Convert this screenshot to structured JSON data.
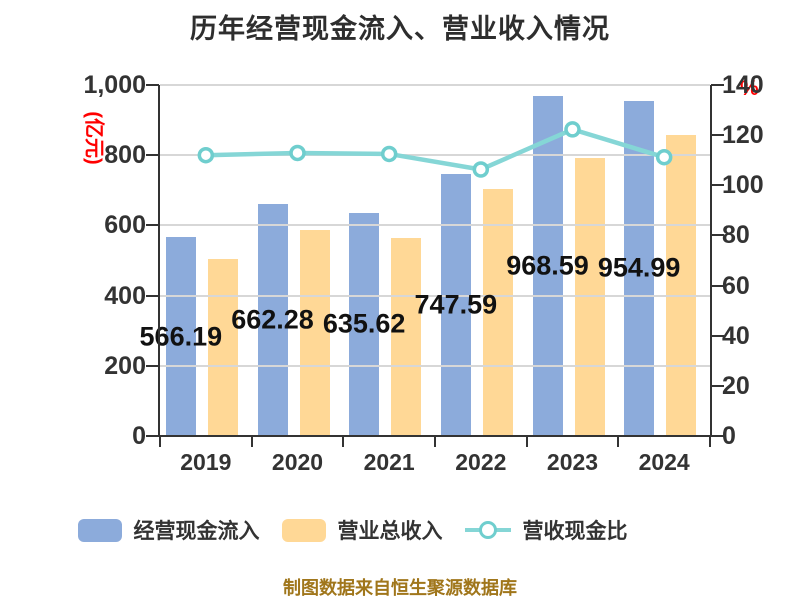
{
  "title": "历年经营现金流入、营业收入情况",
  "footer": {
    "text": "制图数据来自恒生聚源数据库",
    "color": "#a0761b"
  },
  "chart_data": {
    "type": "bar",
    "title": "历年经营现金流入、营业收入情况",
    "categories": [
      "2019",
      "2020",
      "2021",
      "2022",
      "2023",
      "2024"
    ],
    "series": [
      {
        "name": "经营现金流入",
        "type": "bar",
        "axis": "left",
        "color": "#8cabdb",
        "values": [
          566.19,
          662.28,
          635.62,
          747.59,
          968.59,
          954.99
        ],
        "data_labels": [
          "566.19",
          "662.28",
          "635.62",
          "747.59",
          "968.59",
          "954.99"
        ]
      },
      {
        "name": "营业总收入",
        "type": "bar",
        "axis": "left",
        "color": "#ffd896",
        "values": [
          505.5,
          586.6,
          565.0,
          703.3,
          792.0,
          858.8
        ]
      },
      {
        "name": "营收现金比",
        "type": "line",
        "axis": "right",
        "color": "#85d6d6",
        "marker_fill": "#ffffff",
        "marker_stroke": "#6fcece",
        "values": [
          112.0,
          112.9,
          112.5,
          106.3,
          122.3,
          111.2
        ]
      }
    ],
    "left_axis": {
      "name": "(亿元)",
      "name_color": "#ff0000",
      "min": 0,
      "max": 1000,
      "step": 200,
      "tick_labels": [
        "0",
        "200",
        "400",
        "600",
        "800",
        "1,000"
      ]
    },
    "right_axis": {
      "name": "%",
      "name_color": "#ff0000",
      "min": 0,
      "max": 140,
      "step": 20,
      "tick_labels": [
        "0",
        "20",
        "40",
        "60",
        "80",
        "100",
        "120",
        "140"
      ]
    },
    "grid": true,
    "legend_position": "bottom"
  }
}
